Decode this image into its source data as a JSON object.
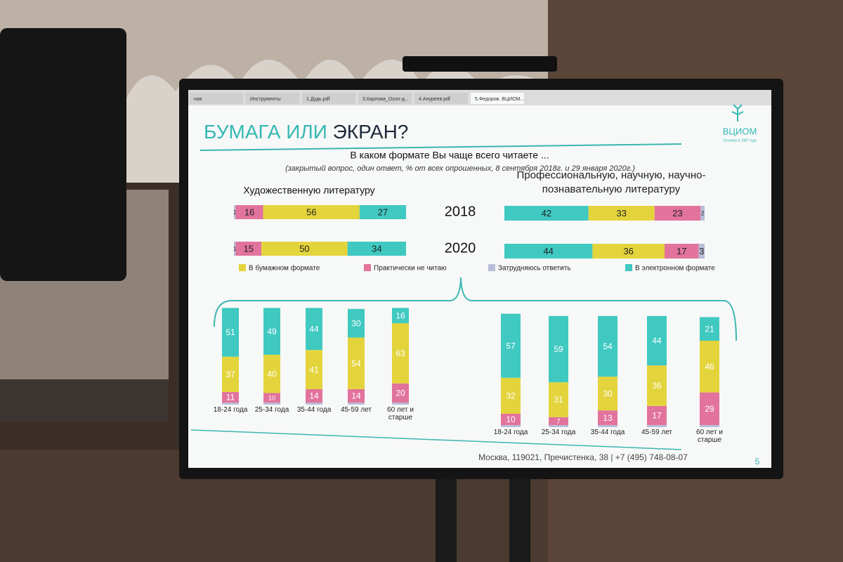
{
  "tabs": [
    "ная",
    "Инструменты",
    "1.Дудь.pdf",
    "3.Карпова_Ozon-д...",
    "4.Ануреев.pdf",
    "5.Федоров. ВЦИОМ..."
  ],
  "slide": {
    "title_parts": [
      "БУМАГА ИЛИ",
      "ЭКРАН?"
    ],
    "question": "В каком формате Вы чаще всего читаете ...",
    "note": "(закрытый вопрос, один ответ, % от всех опрошенных, 8 сентября 2018г. и 29 января 2020г.)",
    "logo": "ВЦИОМ",
    "logo_tagline": "Основан в 1987 году",
    "footer": "Москва, 119021, Пречистенка, 38 | +7 (495) 748-08-07",
    "page_number": "5"
  },
  "chart_data": [
    {
      "type": "bar",
      "orientation": "horizontal",
      "title": "Художественную литературу",
      "categories": [
        "2018",
        "2020"
      ],
      "series": [
        {
          "name": "Затрудняюсь ответить",
          "color": "#b9bdd9",
          "values": [
            1,
            1
          ]
        },
        {
          "name": "Практически не читаю",
          "color": "#e2739c",
          "values": [
            16,
            15
          ]
        },
        {
          "name": "В бумажном формате",
          "color": "#e4d43c",
          "values": [
            56,
            50
          ]
        },
        {
          "name": "В электронном формате",
          "color": "#3fc9c1",
          "values": [
            27,
            34
          ]
        }
      ]
    },
    {
      "type": "bar",
      "orientation": "horizontal",
      "title": "Профессиональную, научную, научно-познавательную литературу",
      "series": [
        {
          "color": "#3fc9c1",
          "values": [
            42,
            44
          ]
        },
        {
          "color": "#e4d43c",
          "values": [
            33,
            36
          ]
        },
        {
          "color": "#e2739c",
          "values": [
            23,
            17
          ]
        },
        {
          "color": "#b9bdd9",
          "values": [
            2,
            3
          ]
        }
      ]
    },
    {
      "type": "bar",
      "orientation": "vertical",
      "categories": [
        "18-24 года",
        "25-34 года",
        "35-44 года",
        "45-59 лет",
        "60 лет и старше"
      ],
      "series": [
        {
          "color": "#e2739c",
          "values": [
            11,
            10,
            14,
            14,
            20
          ]
        },
        {
          "color": "#e4d43c",
          "values": [
            37,
            40,
            41,
            54,
            63
          ]
        },
        {
          "color": "#3fc9c1",
          "values": [
            51,
            49,
            44,
            30,
            16
          ]
        }
      ]
    },
    {
      "type": "bar",
      "orientation": "vertical",
      "categories": [
        "18-24 года",
        "25-34 года",
        "35-44 года",
        "45-59 лет",
        "60 лет и старше"
      ],
      "series": [
        {
          "color": "#e2739c",
          "values": [
            10,
            7,
            13,
            17,
            29
          ]
        },
        {
          "color": "#e4d43c",
          "values": [
            32,
            31,
            30,
            36,
            46
          ]
        },
        {
          "color": "#3fc9c1",
          "values": [
            57,
            59,
            54,
            44,
            21
          ]
        }
      ]
    }
  ]
}
